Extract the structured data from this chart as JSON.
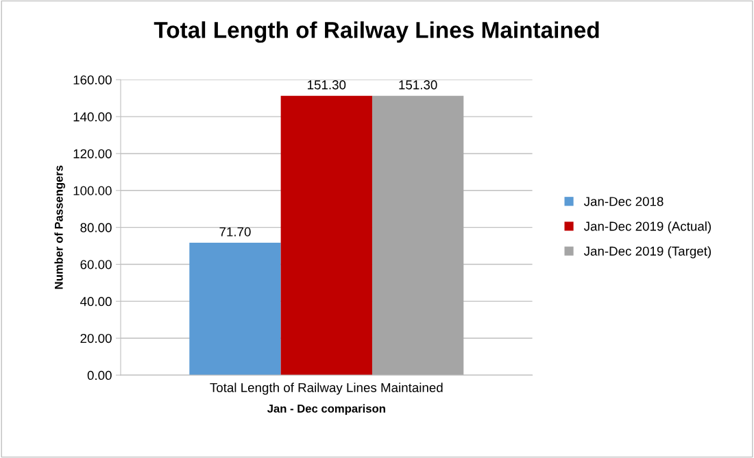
{
  "chart_data": {
    "type": "bar",
    "title": "Total Length of Railway Lines Maintained",
    "xlabel": "Jan - Dec comparison",
    "ylabel": "Number of Passengers",
    "categories": [
      "Total Length of Railway Lines Maintained"
    ],
    "series": [
      {
        "name": "Jan-Dec 2018",
        "color": "#5b9bd5",
        "values": [
          71.7
        ],
        "value_labels": [
          "71.70"
        ]
      },
      {
        "name": "Jan-Dec 2019 (Actual)",
        "color": "#c00000",
        "values": [
          151.3
        ],
        "value_labels": [
          "151.30"
        ]
      },
      {
        "name": "Jan-Dec 2019 (Target)",
        "color": "#a5a5a5",
        "values": [
          151.3
        ],
        "value_labels": [
          "151.30"
        ]
      }
    ],
    "ylim": [
      0,
      160
    ],
    "yticks": [
      {
        "value": 0,
        "label": "0.00"
      },
      {
        "value": 20,
        "label": "20.00"
      },
      {
        "value": 40,
        "label": "40.00"
      },
      {
        "value": 60,
        "label": "60.00"
      },
      {
        "value": 80,
        "label": "80.00"
      },
      {
        "value": 100,
        "label": "100.00"
      },
      {
        "value": 120,
        "label": "120.00"
      },
      {
        "value": 140,
        "label": "140.00"
      },
      {
        "value": 160,
        "label": "160.00"
      }
    ],
    "grid": "y",
    "legend": "right"
  }
}
